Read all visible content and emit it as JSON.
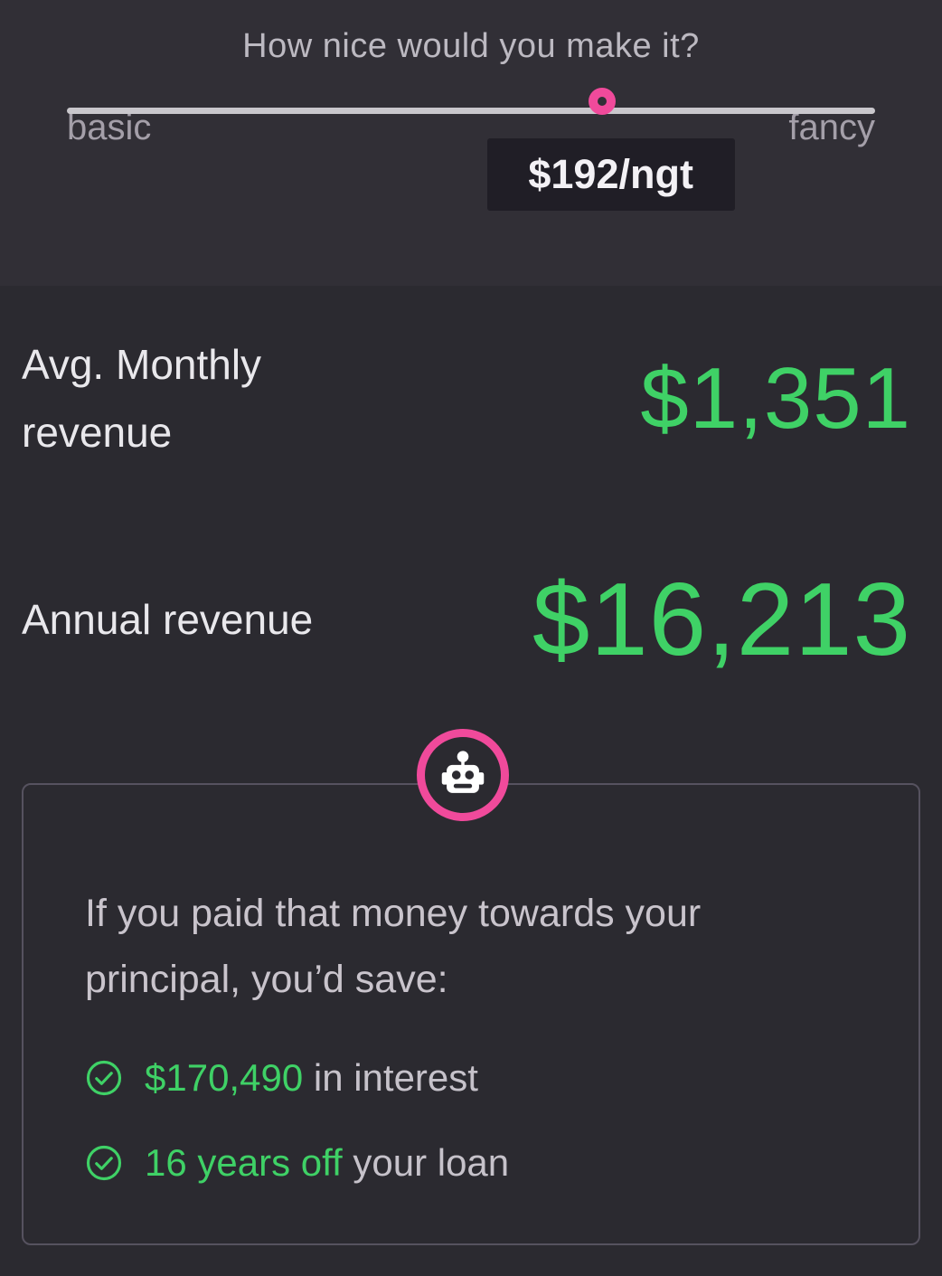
{
  "theme": {
    "bg_top": "#312f36",
    "bg_main": "#2b2a30",
    "badge_bg": "#201e26",
    "accent_pink": "#f04a9b",
    "accent_green": "#3fd166",
    "box_border": "#56525f",
    "track_gray": "#c9c7cc"
  },
  "slider": {
    "question": "How nice would you make it?",
    "min_label": "basic",
    "max_label": "fancy",
    "value_label": "$192/ngt",
    "position_percent": 67.3
  },
  "stats": [
    {
      "label": "Avg. Monthly revenue",
      "value": "$1,351"
    },
    {
      "label": "Annual revenue",
      "value": "$16,213"
    }
  ],
  "savings": {
    "intro": "If you paid that money towards your principal, you’d save:",
    "items": [
      {
        "highlight": "$170,490",
        "rest": " in interest"
      },
      {
        "highlight": "16 years off",
        "rest": " your loan"
      }
    ]
  }
}
